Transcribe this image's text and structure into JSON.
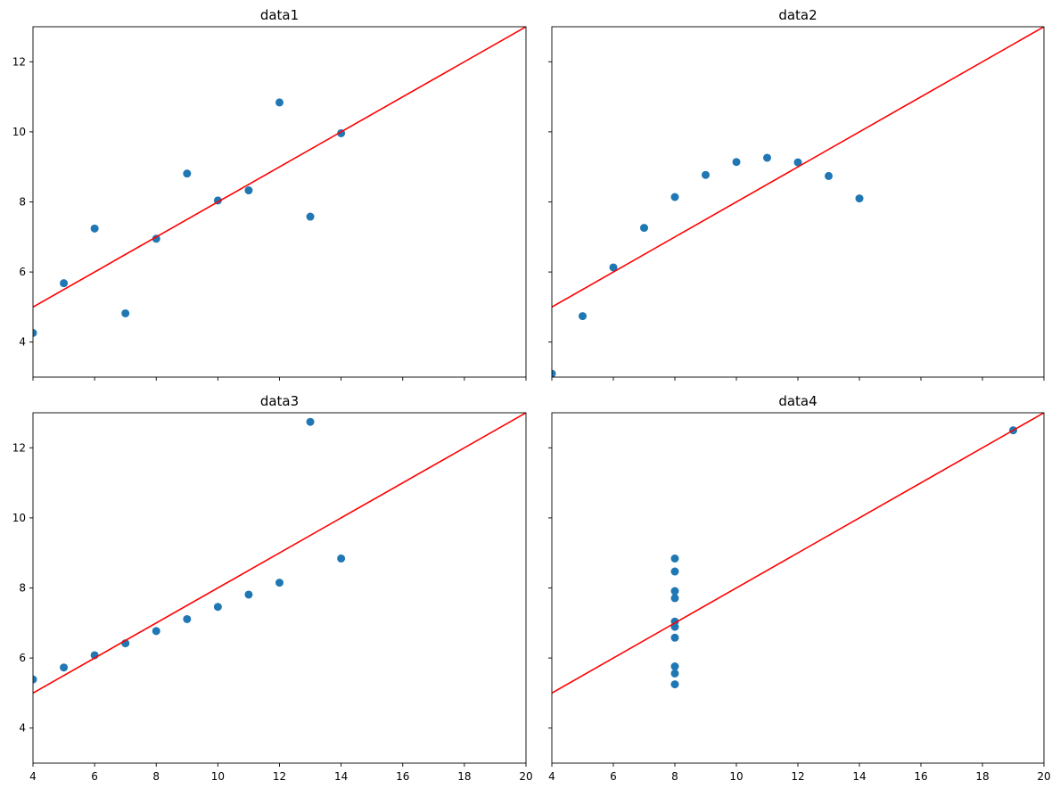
{
  "chart_data": [
    {
      "type": "scatter",
      "title": "data1",
      "xlim": [
        4,
        20
      ],
      "ylim": [
        3,
        13
      ],
      "xticks": [
        4,
        6,
        8,
        10,
        12,
        14,
        16,
        18,
        20
      ],
      "yticks": [
        4,
        6,
        8,
        10,
        12
      ],
      "show_xticklabels": false,
      "show_yticklabels": true,
      "x": [
        10,
        8,
        13,
        9,
        11,
        14,
        6,
        4,
        12,
        7,
        5
      ],
      "y": [
        8.04,
        6.95,
        7.58,
        8.81,
        8.33,
        9.96,
        7.24,
        4.26,
        10.84,
        4.82,
        5.68
      ],
      "fit_line": {
        "x": [
          4,
          20
        ],
        "y": [
          5,
          13
        ],
        "color": "#ff0000"
      },
      "marker_color": "#1f77b4"
    },
    {
      "type": "scatter",
      "title": "data2",
      "xlim": [
        4,
        20
      ],
      "ylim": [
        3,
        13
      ],
      "xticks": [
        4,
        6,
        8,
        10,
        12,
        14,
        16,
        18,
        20
      ],
      "yticks": [
        4,
        6,
        8,
        10,
        12
      ],
      "show_xticklabels": false,
      "show_yticklabels": false,
      "x": [
        10,
        8,
        13,
        9,
        11,
        14,
        6,
        4,
        12,
        7,
        5
      ],
      "y": [
        9.14,
        8.14,
        8.74,
        8.77,
        9.26,
        8.1,
        6.13,
        3.1,
        9.13,
        7.26,
        4.74
      ],
      "fit_line": {
        "x": [
          4,
          20
        ],
        "y": [
          5,
          13
        ],
        "color": "#ff0000"
      },
      "marker_color": "#1f77b4"
    },
    {
      "type": "scatter",
      "title": "data3",
      "xlim": [
        4,
        20
      ],
      "ylim": [
        3,
        13
      ],
      "xticks": [
        4,
        6,
        8,
        10,
        12,
        14,
        16,
        18,
        20
      ],
      "yticks": [
        4,
        6,
        8,
        10,
        12
      ],
      "show_xticklabels": true,
      "show_yticklabels": true,
      "x": [
        10,
        8,
        13,
        9,
        11,
        14,
        6,
        4,
        12,
        7,
        5
      ],
      "y": [
        7.46,
        6.77,
        12.74,
        7.11,
        7.81,
        8.84,
        6.08,
        5.39,
        8.15,
        6.42,
        5.73
      ],
      "fit_line": {
        "x": [
          4,
          20
        ],
        "y": [
          5,
          13
        ],
        "color": "#ff0000"
      },
      "marker_color": "#1f77b4"
    },
    {
      "type": "scatter",
      "title": "data4",
      "xlim": [
        4,
        20
      ],
      "ylim": [
        3,
        13
      ],
      "xticks": [
        4,
        6,
        8,
        10,
        12,
        14,
        16,
        18,
        20
      ],
      "yticks": [
        4,
        6,
        8,
        10,
        12
      ],
      "show_xticklabels": true,
      "show_yticklabels": false,
      "x": [
        8,
        8,
        8,
        8,
        8,
        8,
        8,
        19,
        8,
        8,
        8
      ],
      "y": [
        6.58,
        5.76,
        7.71,
        8.84,
        8.47,
        7.04,
        5.25,
        12.5,
        5.56,
        7.91,
        6.89
      ],
      "fit_line": {
        "x": [
          4,
          20
        ],
        "y": [
          5,
          13
        ],
        "color": "#ff0000"
      },
      "marker_color": "#1f77b4"
    }
  ]
}
